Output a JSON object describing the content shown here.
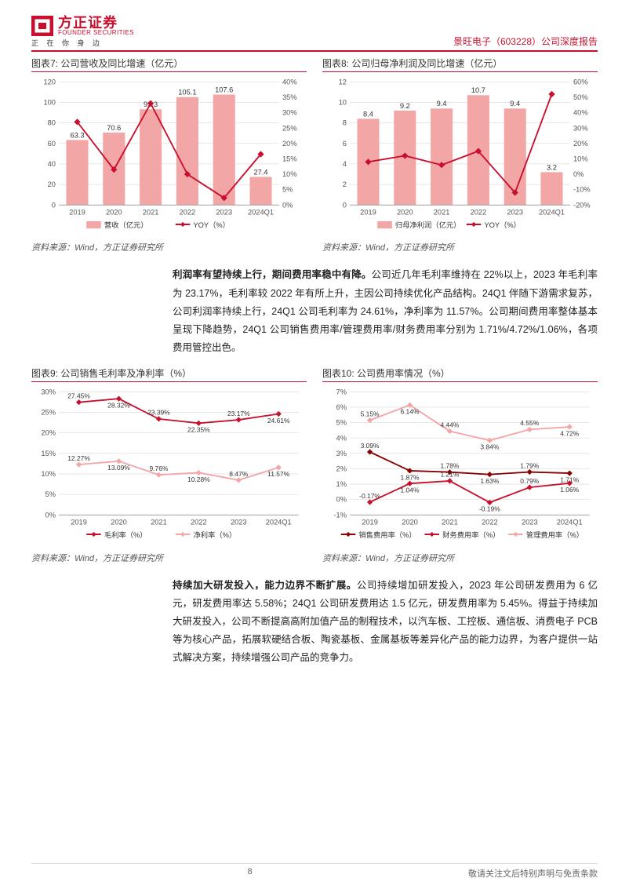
{
  "header": {
    "logo_cn": "方正证券",
    "logo_en": "FOUNDER SECURITIES",
    "logo_tagline": "正 在 你 身 边",
    "right_text": "景旺电子（603228）公司深度报告"
  },
  "charts": {
    "c7": {
      "title": "图表7: 公司营收及同比增速（亿元）",
      "type": "bar+line",
      "categories": [
        "2019",
        "2020",
        "2021",
        "2022",
        "2023",
        "2024Q1"
      ],
      "bar_values": [
        63.3,
        70.6,
        93.3,
        105.1,
        107.6,
        27.4
      ],
      "bar_labels": [
        "63.3",
        "70.6",
        "93.3",
        "105.1",
        "107.6",
        "27.4"
      ],
      "bar_color": "#f2a6a6",
      "line_series": {
        "color": "#c8102e",
        "values_pct": [
          27,
          11.5,
          33,
          10,
          2.3,
          16.5
        ]
      },
      "y_left": {
        "min": 0,
        "max": 120,
        "step": 20
      },
      "y_right": {
        "min": 0,
        "max": 40,
        "step": 5,
        "suffix": "%"
      },
      "legend": [
        {
          "label": "营收（亿元）",
          "color": "#f2a6a6",
          "type": "bar"
        },
        {
          "label": "YOY（%）",
          "color": "#c8102e",
          "type": "line"
        }
      ],
      "source": "资料来源：Wind，方正证券研究所",
      "font_size": 9,
      "label_font_size": 9,
      "bar_width": 0.6,
      "grid_color": "#d9d9d9",
      "bg": "#ffffff"
    },
    "c8": {
      "title": "图表8: 公司归母净利润及同比增速（亿元）",
      "type": "bar+line",
      "categories": [
        "2019",
        "2020",
        "2021",
        "2022",
        "2023",
        "2024Q1"
      ],
      "bar_values": [
        8.4,
        9.2,
        9.4,
        10.7,
        9.4,
        3.2
      ],
      "bar_labels": [
        "8.4",
        "9.2",
        "9.4",
        "10.7",
        "9.4",
        "3.2"
      ],
      "bar_color": "#f2a6a6",
      "line_series": {
        "color": "#c8102e",
        "values_pct": [
          8,
          12,
          6,
          15,
          -12,
          52
        ]
      },
      "y_left": {
        "min": 0,
        "max": 12,
        "step": 2
      },
      "y_right": {
        "min": -20,
        "max": 60,
        "step": 10,
        "suffix": "%"
      },
      "legend": [
        {
          "label": "归母净利润（亿元）",
          "color": "#f2a6a6",
          "type": "bar"
        },
        {
          "label": "YOY（%）",
          "color": "#c8102e",
          "type": "line"
        }
      ],
      "source": "资料来源：Wind，方正证券研究所",
      "font_size": 9,
      "label_font_size": 9,
      "bar_width": 0.6,
      "grid_color": "#d9d9d9",
      "bg": "#ffffff"
    },
    "c9": {
      "title": "图表9: 公司销售毛利率及净利率（%）",
      "type": "line",
      "categories": [
        "2019",
        "2020",
        "2021",
        "2022",
        "2023",
        "2024Q1"
      ],
      "series": [
        {
          "name": "毛利率（%）",
          "color": "#c8102e",
          "values": [
            27.45,
            28.32,
            23.39,
            22.35,
            23.17,
            24.61
          ],
          "labels": [
            "27.45%",
            "28.32%",
            "23.39%",
            "22.35%",
            "23.17%",
            "24.61%"
          ]
        },
        {
          "name": "净利率（%）",
          "color": "#f2a6a6",
          "values": [
            12.27,
            13.09,
            9.76,
            10.28,
            8.47,
            11.57
          ],
          "labels": [
            "12.27%",
            "13.09%",
            "9.76%",
            "10.28%",
            "8.47%",
            "11.57%"
          ]
        }
      ],
      "y": {
        "min": 0,
        "max": 30,
        "step": 5,
        "suffix": "%"
      },
      "legend": [
        {
          "label": "毛利率（%）",
          "color": "#c8102e",
          "type": "line"
        },
        {
          "label": "净利率（%）",
          "color": "#f2a6a6",
          "type": "line"
        }
      ],
      "source": "资料来源：Wind，方正证券研究所",
      "font_size": 9,
      "grid_color": "#d9d9d9",
      "bg": "#ffffff"
    },
    "c10": {
      "title": "图表10: 公司费用率情况（%）",
      "type": "line",
      "categories": [
        "2019",
        "2020",
        "2021",
        "2022",
        "2023",
        "2024Q1"
      ],
      "series": [
        {
          "name": "销售费用率（%）",
          "color": "#8b0000",
          "values": [
            3.09,
            1.87,
            1.78,
            1.63,
            1.79,
            1.71
          ],
          "labels": [
            "3.09%",
            "1.87%",
            "1.78%",
            "1.63%",
            "1.79%",
            "1.71%"
          ]
        },
        {
          "name": "财务费用率（%）",
          "color": "#c8102e",
          "values": [
            -0.17,
            1.04,
            1.21,
            -0.19,
            0.79,
            1.06
          ],
          "labels": [
            "-0.17%",
            "1.04%",
            "1.21%",
            "-0.19%",
            "0.79%",
            "1.06%"
          ]
        },
        {
          "name": "管理费用率（%）",
          "color": "#f2a6a6",
          "values": [
            5.15,
            6.14,
            4.44,
            3.84,
            4.55,
            4.72
          ],
          "labels": [
            "5.15%",
            "6.14%",
            "4.44%",
            "3.84%",
            "4.55%",
            "4.72%"
          ]
        }
      ],
      "y": {
        "min": -1,
        "max": 7,
        "step": 1,
        "suffix": "%"
      },
      "legend": [
        {
          "label": "销售费用率（%）",
          "color": "#8b0000",
          "type": "line"
        },
        {
          "label": "财务费用率（%）",
          "color": "#c8102e",
          "type": "line"
        },
        {
          "label": "管理费用率（%）",
          "color": "#f2a6a6",
          "type": "line"
        }
      ],
      "source": "资料来源：Wind，方正证券研究所",
      "font_size": 9,
      "grid_color": "#d9d9d9",
      "bg": "#ffffff"
    }
  },
  "paragraphs": {
    "p1_bold": "利润率有望持续上行，期间费用率稳中有降。",
    "p1_body": "公司近几年毛利率维持在 22%以上，2023 年毛利率为 23.17%，毛利率较 2022 年有所上升，主因公司持续优化产品结构。24Q1 伴随下游需求复苏，公司利润率持续上行，24Q1 公司毛利率为 24.61%，净利率为 11.57%。公司期间费用率整体基本呈现下降趋势，24Q1 公司销售费用率/管理费用率/财务费用率分别为 1.71%/4.72%/1.06%，各项费用管控出色。",
    "p2_bold": "持续加大研发投入，能力边界不断扩展。",
    "p2_body": "公司持续增加研发投入，2023 年公司研发费用为 6 亿元，研发费用率达 5.58%；24Q1 公司研发费用达 1.5 亿元，研发费用率为 5.45%。得益于持续加大研发投入，公司不断提高高附加值产品的制程技术，以汽车板、工控板、通信板、消费电子 PCB 等为核心产品，拓展软硬结合板、陶瓷基板、金属基板等差异化产品的能力边界，为客户提供一站式解决方案，持续增强公司产品的竞争力。"
  },
  "footer": {
    "page_num": "8",
    "disclaimer": "敬请关注文后特别声明与免责条款"
  }
}
